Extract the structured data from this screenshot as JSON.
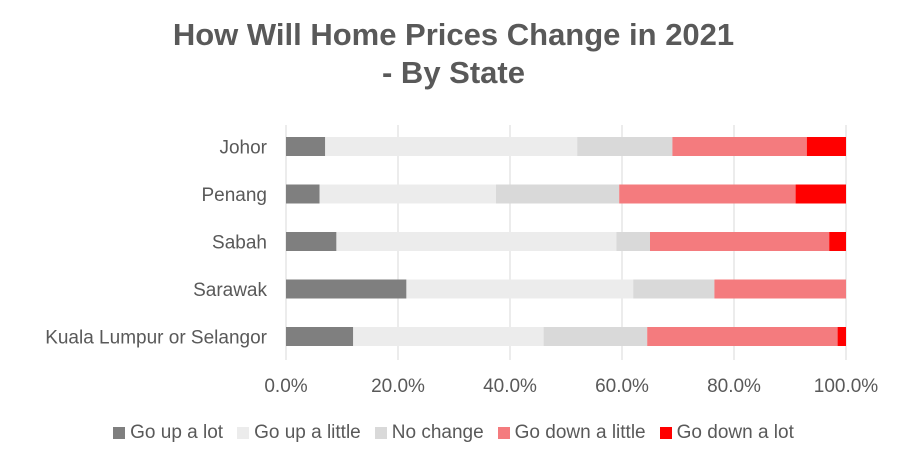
{
  "chart_data": {
    "type": "bar",
    "orientation": "horizontal",
    "stacked": true,
    "title_line1": "How Will Home Prices Change in 2021",
    "title_line2": "- By State",
    "categories": [
      "Johor",
      "Penang",
      "Sabah",
      "Sarawak",
      "Kuala Lumpur or Selangor"
    ],
    "series": [
      {
        "name": "Go up a lot",
        "color": "#7f7f7f",
        "values": [
          7,
          6,
          9,
          21.5,
          12
        ]
      },
      {
        "name": "Go up a little",
        "color": "#ececec",
        "values": [
          45,
          31.5,
          50,
          40.5,
          34
        ]
      },
      {
        "name": "No change",
        "color": "#d9d9d9",
        "values": [
          17,
          22,
          6,
          14.5,
          18.5
        ]
      },
      {
        "name": "Go down a little",
        "color": "#f47b7e",
        "values": [
          24,
          31.5,
          32,
          23.5,
          34
        ]
      },
      {
        "name": "Go down a lot",
        "color": "#ff0000",
        "values": [
          7,
          9,
          3,
          0,
          1.5
        ]
      }
    ],
    "xlim": [
      0,
      100
    ],
    "x_ticks": [
      "0.0%",
      "20.0%",
      "40.0%",
      "60.0%",
      "80.0%",
      "100.0%"
    ],
    "x_tick_values": [
      0,
      20,
      40,
      60,
      80,
      100
    ],
    "grid": true,
    "legend_position": "bottom"
  }
}
